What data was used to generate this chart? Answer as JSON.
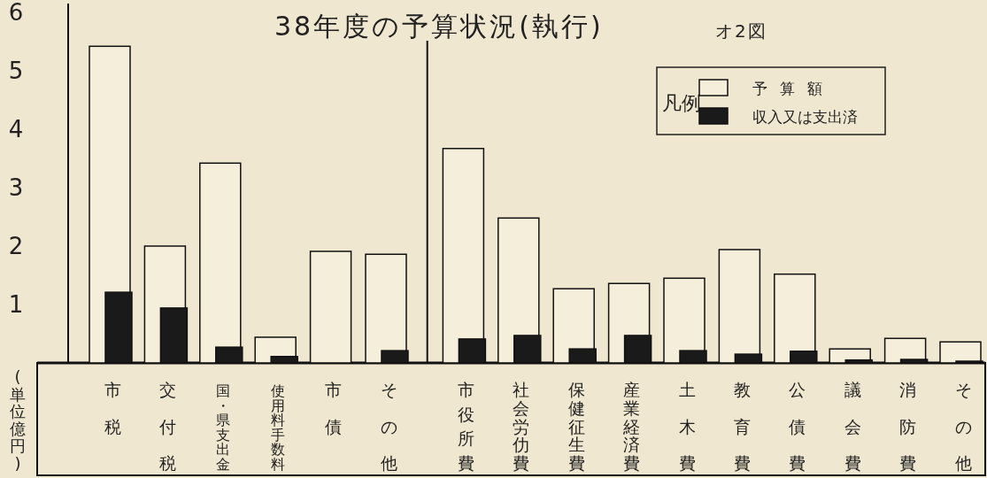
{
  "chart_data": {
    "type": "bar",
    "title": "38年度の予算状況(執行)",
    "subtitle": "オ2図",
    "ylabel": "(単位億円)",
    "legend_title": "凡例",
    "categories": [
      "市税",
      "交付税",
      "国・県支出金",
      "使用料手数料",
      "市債",
      "その他",
      "市役所費",
      "社会労仂費",
      "保健征生費",
      "産業経済費",
      "土木費",
      "教育費",
      "公債費",
      "議会費",
      "消防費",
      "その他"
    ],
    "series": [
      {
        "name": "予算額",
        "color": "#f4eedb",
        "values": [
          5.42,
          2.0,
          3.42,
          0.44,
          1.91,
          1.86,
          3.67,
          2.48,
          1.27,
          1.36,
          1.45,
          1.94,
          1.52,
          0.24,
          0.42,
          0.36
        ]
      },
      {
        "name": "収入又は支出済",
        "color": "#1a1a1a",
        "values": [
          1.21,
          0.94,
          0.27,
          0.11,
          null,
          0.21,
          0.41,
          0.47,
          0.24,
          0.47,
          0.21,
          0.15,
          0.2,
          0.05,
          0.06,
          0.03
        ]
      }
    ],
    "ylim": [
      0,
      6
    ],
    "yticks": [
      1,
      2,
      3,
      4,
      5,
      6
    ],
    "grid": false,
    "legend": "top right"
  }
}
